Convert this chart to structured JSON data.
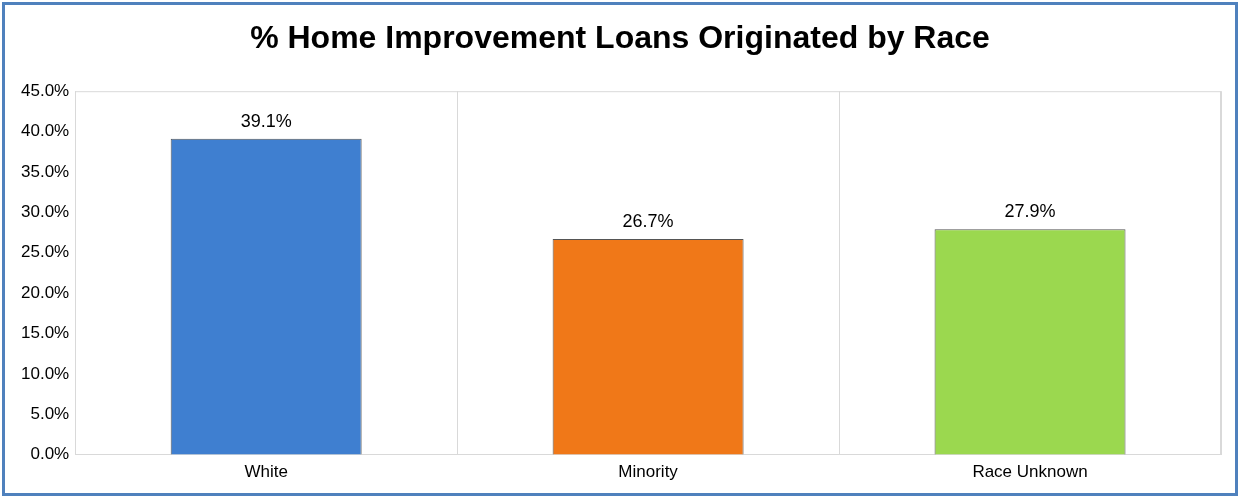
{
  "chart_data": {
    "type": "bar",
    "title": "% Home Improvement Loans Originated by Race",
    "categories": [
      "White",
      "Minority",
      "Race Unknown"
    ],
    "values": [
      39.1,
      26.7,
      27.9
    ],
    "colors": [
      "#3f7fd0",
      "#f07818",
      "#9bd84f"
    ],
    "value_labels": [
      "39.1%",
      "26.7%",
      "27.9%"
    ],
    "ylim": [
      0,
      45
    ],
    "yticks": [
      {
        "value": 0,
        "label": "0.0%"
      },
      {
        "value": 5,
        "label": "5.0%"
      },
      {
        "value": 10,
        "label": "10.0%"
      },
      {
        "value": 15,
        "label": "15.0%"
      },
      {
        "value": 20,
        "label": "20.0%"
      },
      {
        "value": 25,
        "label": "25.0%"
      },
      {
        "value": 30,
        "label": "30.0%"
      },
      {
        "value": 35,
        "label": "35.0%"
      },
      {
        "value": 40,
        "label": "40.0%"
      },
      {
        "value": 45,
        "label": "45.0%"
      }
    ],
    "grid": "x",
    "legend": false
  }
}
